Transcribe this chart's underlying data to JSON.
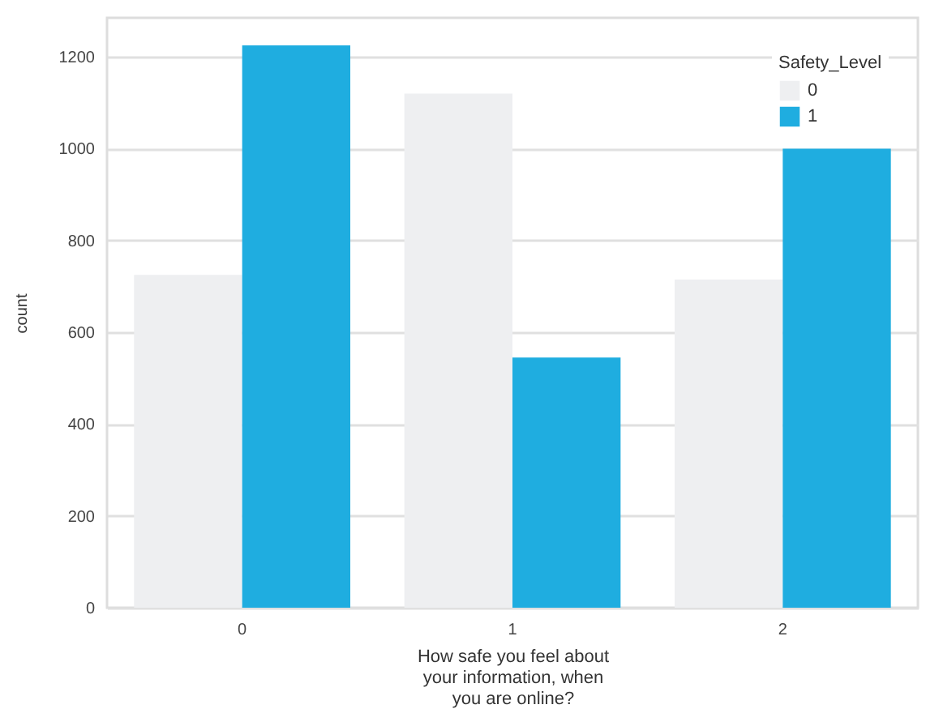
{
  "chart_data": {
    "type": "bar",
    "xlabel": "How safe you feel about your information, when you are online?",
    "ylabel": "count",
    "legend_title": "Safety_Level",
    "legend": "top right",
    "grid": "y",
    "categories": [
      "0",
      "1",
      "2"
    ],
    "series": [
      {
        "name": "0",
        "color": "#eeeff1",
        "values": [
          725,
          1120,
          715
        ]
      },
      {
        "name": "1",
        "color": "#1fade0",
        "values": [
          1225,
          545,
          1000
        ]
      }
    ],
    "ylim": [
      0,
      1285
    ],
    "yticks": [
      0,
      200,
      400,
      600,
      800,
      1000,
      1200
    ]
  }
}
